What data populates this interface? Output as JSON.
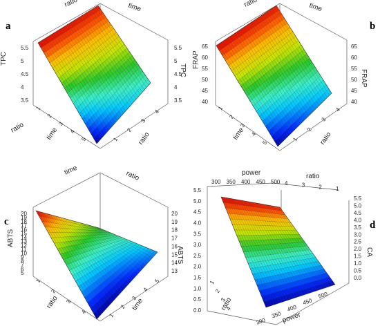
{
  "chart_data": [
    {
      "type": "surface",
      "panel_label": "a",
      "z_label": "TPC",
      "x_label": "ratio",
      "y_label": "time",
      "z_ticks": [
        "3.5",
        "4",
        "4.5",
        "5",
        "5.5"
      ],
      "z_ticks_right": [
        "3.5",
        "4",
        "4.5",
        "5",
        "5.5"
      ],
      "x_ticks": [
        "1",
        "2",
        "3",
        "4"
      ],
      "y_ticks": [
        "1",
        "2",
        "3",
        "4",
        "5"
      ],
      "z_range": [
        3.2,
        5.8
      ],
      "corner_values": {
        "low_ratio_high_time": 5.7,
        "high_ratio_high_time": 5.5,
        "low_ratio_low_time": 3.3,
        "high_ratio_low_time": 4.1
      },
      "colormap": "jet"
    },
    {
      "type": "surface",
      "panel_label": "b",
      "z_label": "FRAP",
      "x_label": "ratio",
      "y_label": "time",
      "z_ticks": [
        "40",
        "45",
        "50",
        "55",
        "60",
        "65"
      ],
      "z_ticks_right": [
        "40",
        "45",
        "50",
        "55",
        "60",
        "65"
      ],
      "x_ticks": [
        "1",
        "2",
        "3",
        "4"
      ],
      "y_ticks": [
        "1",
        "2",
        "3",
        "4",
        "5"
      ],
      "z_range": [
        38,
        68
      ],
      "corner_values": {
        "low_ratio_high_time": 67,
        "high_ratio_high_time": 66,
        "low_ratio_low_time": 39,
        "high_ratio_low_time": 42
      },
      "colormap": "jet"
    },
    {
      "type": "surface",
      "panel_label": "c",
      "z_label": "ABTS",
      "x_label": "ratio",
      "y_label": "time",
      "z_ticks": [
        "5",
        "6",
        "7",
        "8",
        "9",
        "10",
        "11",
        "12",
        "13",
        "14",
        "15",
        "16",
        "17",
        "18",
        "19",
        "20"
      ],
      "z_ticks_right": [
        "13",
        "14",
        "15",
        "16",
        "17",
        "18",
        "19",
        "20"
      ],
      "x_ticks": [
        "1",
        "2",
        "3",
        "4"
      ],
      "y_ticks": [
        "1",
        "2",
        "3",
        "4",
        "5"
      ],
      "z_range": [
        4,
        21
      ],
      "corner_values": {
        "low_ratio_high_time": 20.5,
        "high_ratio_high_time": 13,
        "low_ratio_low_time": 5,
        "high_ratio_low_time": 10
      },
      "colormap": "jet"
    },
    {
      "type": "surface",
      "panel_label": "d",
      "z_label": "CA",
      "x_label": "ratio",
      "y_label": "power",
      "z_ticks": [
        "0.0",
        "0.5",
        "1.0",
        "1.5",
        "2.0",
        "2.5",
        "3.0",
        "3.5",
        "4.0",
        "4.5",
        "5.0",
        "5.5"
      ],
      "z_ticks_right": [
        "0.0",
        "0.5",
        "1.0",
        "1.5",
        "2.0",
        "2.5",
        "3.0",
        "3.5",
        "4.0",
        "4.5",
        "5.0",
        "5.5"
      ],
      "x_ticks": [
        "1",
        "2",
        "3",
        "4"
      ],
      "y_ticks": [
        "300",
        "350",
        "400",
        "450",
        "500"
      ],
      "z_range": [
        0,
        5.6
      ],
      "corner_values": {
        "low_ratio_low_power": 5.5,
        "high_ratio_low_power": 5.2,
        "low_ratio_high_power": 0.1,
        "high_ratio_high_power": 0.3
      },
      "colormap": "jet"
    }
  ]
}
